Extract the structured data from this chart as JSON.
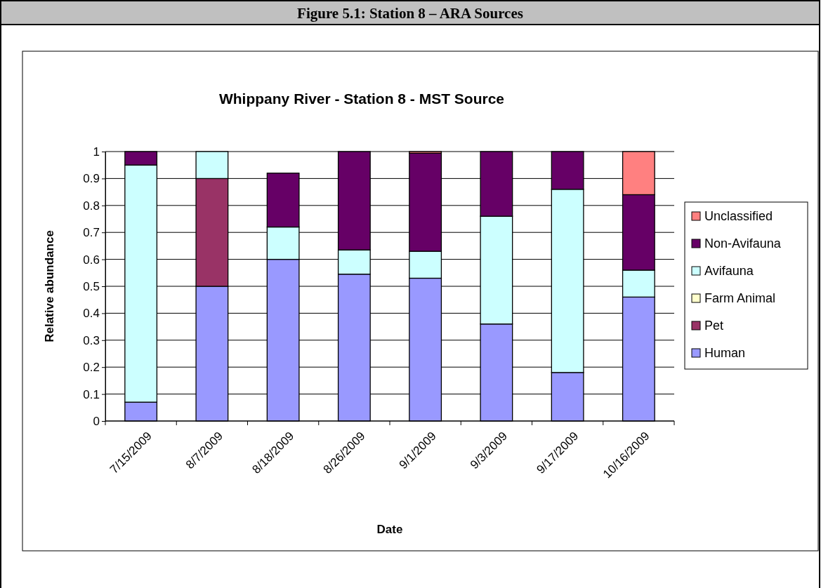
{
  "chart_data": {
    "type": "bar",
    "stacked": true,
    "title": "Whippany River - Station 8 - MST Source",
    "xlabel": "Date",
    "ylabel": "Relative abundance",
    "annotations": [
      "Figure 5.1: Station 8 – ARA Sources"
    ],
    "categories": [
      "7/15/2009",
      "8/7/2009",
      "8/18/2009",
      "8/26/2009",
      "9/1/2009",
      "9/3/2009",
      "9/17/2009",
      "10/16/2009"
    ],
    "series": [
      {
        "name": "Human",
        "color": "#9999ff",
        "values": [
          0.07,
          0.5,
          0.6,
          0.545,
          0.53,
          0.36,
          0.18,
          0.46
        ]
      },
      {
        "name": "Pet",
        "color": "#993366",
        "values": [
          0,
          0.4,
          0,
          0,
          0,
          0,
          0,
          0
        ]
      },
      {
        "name": "Farm Animal",
        "color": "#ffffcc",
        "values": [
          0,
          0,
          0,
          0,
          0,
          0,
          0,
          0
        ]
      },
      {
        "name": "Avifauna",
        "color": "#ccffff",
        "values": [
          0.88,
          0.1,
          0.12,
          0.09,
          0.1,
          0.4,
          0.68,
          0.1
        ]
      },
      {
        "name": "Non-Avifauna",
        "color": "#660066",
        "values": [
          0.05,
          0,
          0.2,
          0.365,
          0.364,
          0.24,
          0.14,
          0.28
        ]
      },
      {
        "name": "Unclassified",
        "color": "#ff8080",
        "values": [
          0,
          0,
          0,
          0,
          0.006,
          0,
          0,
          0.16
        ]
      }
    ],
    "ylim": [
      0,
      1
    ],
    "yticks": [
      0,
      0.1,
      0.2,
      0.3,
      0.4,
      0.5,
      0.6,
      0.7,
      0.8,
      0.9,
      1
    ],
    "grid": "y",
    "legend": "right"
  }
}
